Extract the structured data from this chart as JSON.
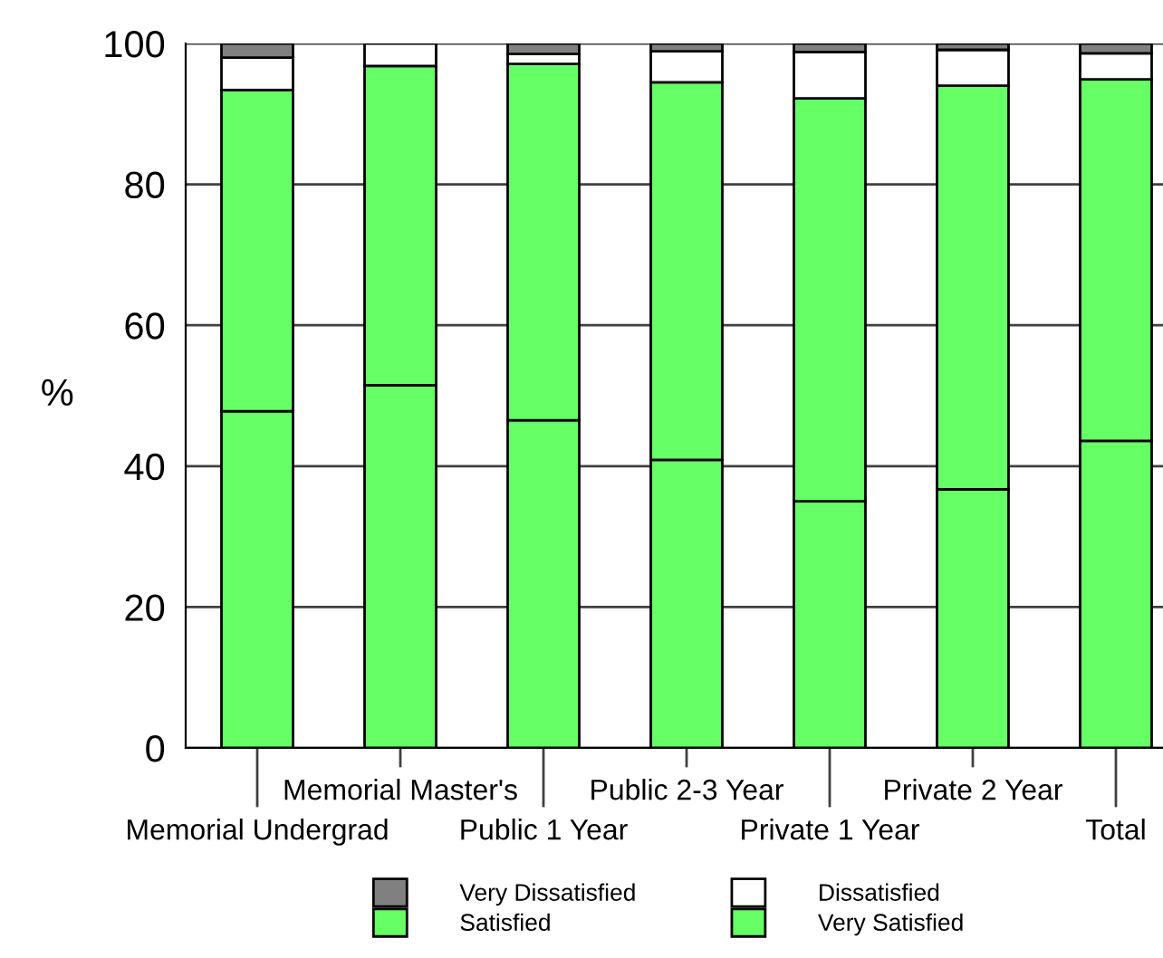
{
  "chart_data": {
    "type": "bar",
    "stacked": true,
    "ylabel": "%",
    "categories": [
      "Memorial Undergrad",
      "Memorial Master's",
      "Public 1 Year",
      "Public 2-3 Year",
      "Private 1 Year",
      "Private 2 Year",
      "Total"
    ],
    "series": [
      {
        "name": "Very Satisfied",
        "color": "#66ff66",
        "values": [
          47.8,
          51.5,
          46.5,
          40.9,
          35.0,
          36.7,
          43.6
        ]
      },
      {
        "name": "Satisfied",
        "color": "#66ff66",
        "values": [
          45.6,
          45.3,
          50.6,
          53.6,
          57.2,
          57.3,
          51.3
        ]
      },
      {
        "name": "Dissatisfied",
        "color": "#ffffff",
        "values": [
          4.6,
          3.2,
          1.4,
          4.4,
          6.6,
          5.1,
          3.7
        ]
      },
      {
        "name": "Very Dissatisfied",
        "color": "#808080",
        "values": [
          2.0,
          null,
          1.5,
          1.1,
          1.2,
          0.9,
          1.4
        ]
      }
    ],
    "ylim": [
      0,
      100
    ],
    "yticks": [
      0,
      20,
      40,
      60,
      80,
      100
    ],
    "grid": "y",
    "legend": "bottom"
  }
}
